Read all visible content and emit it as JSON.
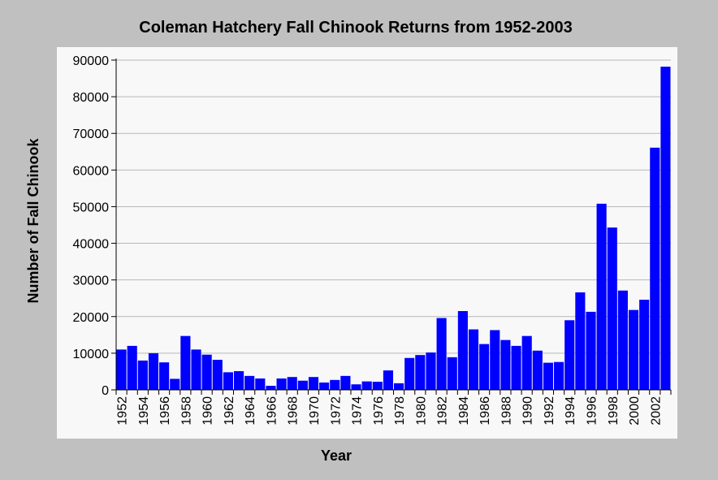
{
  "chart_data": {
    "type": "bar",
    "title": "Coleman Hatchery Fall Chinook Returns from 1952-2003",
    "xlabel": "Year",
    "ylabel": "Number of Fall Chinook",
    "ylim": [
      0,
      90000
    ],
    "yticks": [
      "0",
      "10000",
      "20000",
      "30000",
      "40000",
      "50000",
      "60000",
      "70000",
      "80000",
      "90000"
    ],
    "xticks": [
      "1952",
      "1954",
      "1956",
      "1958",
      "1960",
      "1962",
      "1964",
      "1966",
      "1968",
      "1970",
      "1972",
      "1974",
      "1976",
      "1978",
      "1980",
      "1982",
      "1984",
      "1986",
      "1988",
      "1990",
      "1992",
      "1994",
      "1996",
      "1998",
      "2000",
      "2002"
    ],
    "grid": true,
    "bar_color": "#0000ff",
    "categories": [
      1952,
      1953,
      1954,
      1955,
      1956,
      1957,
      1958,
      1959,
      1960,
      1961,
      1962,
      1963,
      1964,
      1965,
      1966,
      1967,
      1968,
      1969,
      1970,
      1971,
      1972,
      1973,
      1974,
      1975,
      1976,
      1977,
      1978,
      1979,
      1980,
      1981,
      1982,
      1983,
      1984,
      1985,
      1986,
      1987,
      1988,
      1989,
      1990,
      1991,
      1992,
      1993,
      1994,
      1995,
      1996,
      1997,
      1998,
      1999,
      2000,
      2001,
      2002,
      2003
    ],
    "values": [
      11000,
      12000,
      8000,
      10000,
      7500,
      3000,
      14700,
      11000,
      9600,
      8200,
      4800,
      5100,
      3800,
      3100,
      1100,
      3100,
      3500,
      2500,
      3500,
      2000,
      2700,
      3800,
      1500,
      2300,
      2200,
      5300,
      1800,
      8700,
      9500,
      10200,
      19600,
      8900,
      21500,
      16500,
      12500,
      16300,
      13600,
      12000,
      14700,
      10700,
      7400,
      7600,
      19000,
      26600,
      21300,
      50800,
      44300,
      27100,
      21800,
      24600,
      66100,
      88200
    ]
  }
}
